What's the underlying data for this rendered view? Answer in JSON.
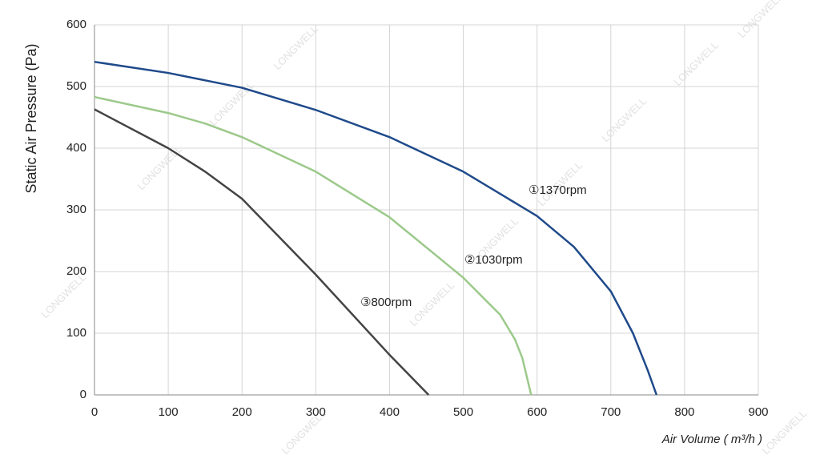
{
  "chart_data": {
    "type": "line",
    "watermark": "LONGWELL",
    "x_label": "Air Volume ( m³/h )",
    "y_label": "Static Air Pressure  (Pa)",
    "xlim": [
      0,
      900
    ],
    "xticks": [
      0,
      100,
      200,
      300,
      400,
      500,
      600,
      700,
      800,
      900
    ],
    "ylim": [
      0,
      600
    ],
    "yticks": [
      0,
      100,
      200,
      300,
      400,
      500,
      600
    ],
    "grid": true,
    "series": [
      {
        "name": "①1370rpm",
        "color": "#1f4a8a",
        "x": [
          0,
          100,
          200,
          300,
          400,
          500,
          600,
          650,
          700,
          730,
          750,
          762
        ],
        "values": [
          540,
          522,
          498,
          462,
          418,
          362,
          290,
          240,
          168,
          100,
          40,
          0
        ]
      },
      {
        "name": "②1030rpm",
        "color": "#9cc98a",
        "x": [
          0,
          100,
          150,
          200,
          300,
          400,
          500,
          550,
          570,
          580,
          592
        ],
        "values": [
          483,
          457,
          440,
          418,
          362,
          288,
          190,
          130,
          90,
          60,
          0
        ]
      },
      {
        "name": "③800rpm",
        "color": "#444444",
        "x": [
          0,
          100,
          150,
          200,
          300,
          400,
          453
        ],
        "values": [
          463,
          400,
          362,
          318,
          195,
          65,
          0
        ]
      }
    ]
  }
}
